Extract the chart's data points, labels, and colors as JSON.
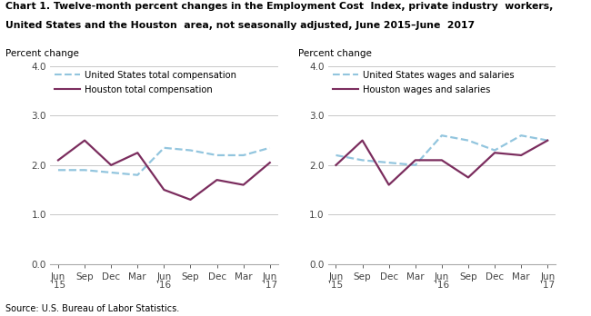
{
  "title_line1": "Chart 1. Twelve-month percent changes in the Employment Cost  Index, private industry  workers,",
  "title_line2": "United States and the Houston  area, not seasonally adjusted, June 2015–June  2017",
  "source": "Source: U.S. Bureau of Labor Statistics.",
  "x_labels": [
    "Jun\n'15",
    "Sep",
    "Dec",
    "Mar",
    "Jun\n'16",
    "Sep",
    "Dec",
    "Mar",
    "Jun\n'17"
  ],
  "x_positions": [
    0,
    1,
    2,
    3,
    4,
    5,
    6,
    7,
    8
  ],
  "ylabel": "Percent change",
  "left_chart": {
    "us_total_comp": [
      1.9,
      1.9,
      1.85,
      1.8,
      2.35,
      2.3,
      2.2,
      2.2,
      2.35
    ],
    "houston_total_comp": [
      2.1,
      2.5,
      2.0,
      2.25,
      1.5,
      1.3,
      1.7,
      1.6,
      2.05
    ],
    "legend1": "United States total compensation",
    "legend2": "Houston total compensation"
  },
  "right_chart": {
    "us_wages_salaries": [
      2.2,
      2.1,
      2.05,
      2.0,
      2.6,
      2.5,
      2.3,
      2.6,
      2.5
    ],
    "houston_wages_salaries": [
      2.0,
      2.5,
      1.6,
      2.1,
      2.1,
      1.75,
      2.25,
      2.2,
      2.5
    ],
    "legend1": "United States wages and salaries",
    "legend2": "Houston wages and salaries"
  },
  "us_color": "#92C5DE",
  "houston_color": "#7B2D5E",
  "ylim": [
    0.0,
    4.0
  ],
  "yticks": [
    0.0,
    1.0,
    2.0,
    3.0,
    4.0
  ],
  "grid_color": "#c8c8c8",
  "bg_color": "#ffffff",
  "title_color": "#000000",
  "tick_color": "#444444"
}
